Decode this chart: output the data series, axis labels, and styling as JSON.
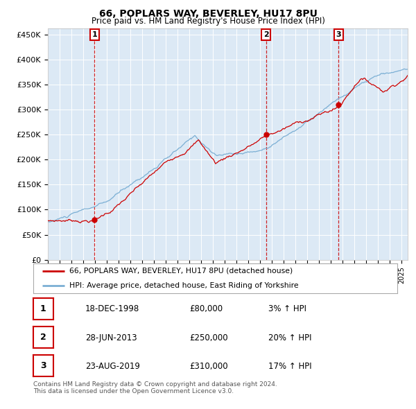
{
  "title": "66, POPLARS WAY, BEVERLEY, HU17 8PU",
  "subtitle": "Price paid vs. HM Land Registry's House Price Index (HPI)",
  "ylabel_ticks": [
    "£0",
    "£50K",
    "£100K",
    "£150K",
    "£200K",
    "£250K",
    "£300K",
    "£350K",
    "£400K",
    "£450K"
  ],
  "ytick_values": [
    0,
    50000,
    100000,
    150000,
    200000,
    250000,
    300000,
    350000,
    400000,
    450000
  ],
  "xstart": 1995.0,
  "xend": 2025.5,
  "background_color": "#ffffff",
  "plot_bg_color": "#dce9f5",
  "sale_points": [
    {
      "date_decimal": 1998.96,
      "price": 80000,
      "label": "1"
    },
    {
      "date_decimal": 2013.49,
      "price": 250000,
      "label": "2"
    },
    {
      "date_decimal": 2019.65,
      "price": 310000,
      "label": "3"
    }
  ],
  "legend_entries": [
    "66, POPLARS WAY, BEVERLEY, HU17 8PU (detached house)",
    "HPI: Average price, detached house, East Riding of Yorkshire"
  ],
  "table_rows": [
    {
      "num": "1",
      "date": "18-DEC-1998",
      "price": "£80,000",
      "hpi": "3% ↑ HPI"
    },
    {
      "num": "2",
      "date": "28-JUN-2013",
      "price": "£250,000",
      "hpi": "20% ↑ HPI"
    },
    {
      "num": "3",
      "date": "23-AUG-2019",
      "price": "£310,000",
      "hpi": "17% ↑ HPI"
    }
  ],
  "footer": "Contains HM Land Registry data © Crown copyright and database right 2024.\nThis data is licensed under the Open Government Licence v3.0.",
  "red_line_color": "#cc0000",
  "blue_line_color": "#7bafd4"
}
